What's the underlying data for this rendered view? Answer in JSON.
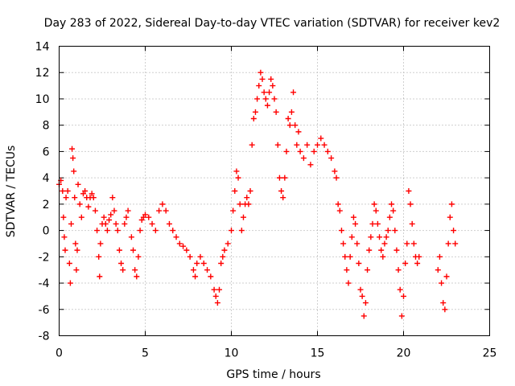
{
  "chart_data": {
    "type": "scatter",
    "title": "Day 283 of 2022, Sidereal Day-to-day VTEC variation (SDTVAR) for receiver kev2",
    "xlabel": "GPS time / hours",
    "ylabel": "SDTVAR / TECUs",
    "xlim": [
      0,
      25
    ],
    "ylim": [
      -8,
      14
    ],
    "xticks": [
      0,
      5,
      10,
      15,
      20,
      25
    ],
    "yticks": [
      -8,
      -6,
      -4,
      -2,
      0,
      2,
      4,
      6,
      8,
      10,
      12,
      14
    ],
    "grid": true,
    "marker": "+",
    "series": [
      {
        "name": "SDTVAR",
        "color": "#ff0000",
        "points": [
          [
            0.0,
            3.5
          ],
          [
            0.1,
            3.8
          ],
          [
            0.2,
            3.0
          ],
          [
            0.25,
            1.0
          ],
          [
            0.3,
            -0.5
          ],
          [
            0.35,
            -1.5
          ],
          [
            0.4,
            2.5
          ],
          [
            0.5,
            3.0
          ],
          [
            0.6,
            -2.5
          ],
          [
            0.65,
            -4.0
          ],
          [
            0.7,
            0.5
          ],
          [
            0.75,
            6.2
          ],
          [
            0.8,
            5.5
          ],
          [
            0.85,
            4.5
          ],
          [
            0.9,
            2.5
          ],
          [
            0.95,
            -1.0
          ],
          [
            1.0,
            -3.0
          ],
          [
            1.05,
            -1.5
          ],
          [
            1.1,
            3.5
          ],
          [
            1.2,
            2.0
          ],
          [
            1.3,
            1.0
          ],
          [
            1.4,
            2.8
          ],
          [
            1.5,
            3.0
          ],
          [
            1.6,
            2.5
          ],
          [
            1.7,
            1.8
          ],
          [
            1.8,
            2.5
          ],
          [
            1.9,
            2.8
          ],
          [
            2.0,
            2.5
          ],
          [
            2.1,
            1.5
          ],
          [
            2.2,
            0.0
          ],
          [
            2.3,
            -2.0
          ],
          [
            2.35,
            -3.5
          ],
          [
            2.4,
            -1.0
          ],
          [
            2.5,
            0.5
          ],
          [
            2.6,
            1.0
          ],
          [
            2.7,
            0.5
          ],
          [
            2.8,
            0.0
          ],
          [
            2.9,
            0.8
          ],
          [
            3.0,
            1.2
          ],
          [
            3.1,
            2.5
          ],
          [
            3.2,
            1.5
          ],
          [
            3.3,
            0.5
          ],
          [
            3.4,
            0.0
          ],
          [
            3.5,
            -1.5
          ],
          [
            3.6,
            -2.5
          ],
          [
            3.7,
            -3.0
          ],
          [
            3.8,
            0.5
          ],
          [
            3.9,
            1.0
          ],
          [
            4.0,
            1.5
          ],
          [
            4.2,
            -0.5
          ],
          [
            4.3,
            -1.5
          ],
          [
            4.4,
            -3.0
          ],
          [
            4.5,
            -3.5
          ],
          [
            4.6,
            -2.0
          ],
          [
            4.7,
            0.0
          ],
          [
            4.8,
            0.8
          ],
          [
            4.9,
            1.0
          ],
          [
            5.0,
            1.2
          ],
          [
            5.2,
            1.0
          ],
          [
            5.4,
            0.5
          ],
          [
            5.6,
            0.0
          ],
          [
            5.8,
            1.5
          ],
          [
            6.0,
            2.0
          ],
          [
            6.2,
            1.5
          ],
          [
            6.4,
            0.5
          ],
          [
            6.6,
            0.0
          ],
          [
            6.8,
            -0.5
          ],
          [
            7.0,
            -1.0
          ],
          [
            7.2,
            -1.2
          ],
          [
            7.4,
            -1.5
          ],
          [
            7.6,
            -2.0
          ],
          [
            7.8,
            -3.0
          ],
          [
            7.9,
            -3.5
          ],
          [
            8.0,
            -2.5
          ],
          [
            8.2,
            -2.0
          ],
          [
            8.4,
            -2.5
          ],
          [
            8.6,
            -3.0
          ],
          [
            8.8,
            -3.5
          ],
          [
            9.0,
            -4.5
          ],
          [
            9.1,
            -5.0
          ],
          [
            9.2,
            -5.5
          ],
          [
            9.3,
            -4.5
          ],
          [
            9.4,
            -2.5
          ],
          [
            9.5,
            -2.0
          ],
          [
            9.6,
            -1.5
          ],
          [
            9.8,
            -1.0
          ],
          [
            10.0,
            0.0
          ],
          [
            10.1,
            1.5
          ],
          [
            10.2,
            3.0
          ],
          [
            10.3,
            4.5
          ],
          [
            10.4,
            4.0
          ],
          [
            10.5,
            2.0
          ],
          [
            10.6,
            0.0
          ],
          [
            10.7,
            1.0
          ],
          [
            10.8,
            2.0
          ],
          [
            10.9,
            2.5
          ],
          [
            11.0,
            2.0
          ],
          [
            11.1,
            3.0
          ],
          [
            11.2,
            6.5
          ],
          [
            11.3,
            8.5
          ],
          [
            11.4,
            9.0
          ],
          [
            11.5,
            10.0
          ],
          [
            11.6,
            11.0
          ],
          [
            11.7,
            12.0
          ],
          [
            11.8,
            11.5
          ],
          [
            11.9,
            10.5
          ],
          [
            12.0,
            10.0
          ],
          [
            12.1,
            9.5
          ],
          [
            12.2,
            10.5
          ],
          [
            12.3,
            11.5
          ],
          [
            12.4,
            11.0
          ],
          [
            12.5,
            10.0
          ],
          [
            12.6,
            9.0
          ],
          [
            12.7,
            6.5
          ],
          [
            12.8,
            4.0
          ],
          [
            12.9,
            3.0
          ],
          [
            13.0,
            2.5
          ],
          [
            13.1,
            4.0
          ],
          [
            13.2,
            6.0
          ],
          [
            13.3,
            8.5
          ],
          [
            13.4,
            8.0
          ],
          [
            13.5,
            9.0
          ],
          [
            13.6,
            10.5
          ],
          [
            13.7,
            8.0
          ],
          [
            13.8,
            6.5
          ],
          [
            13.9,
            7.5
          ],
          [
            14.0,
            6.0
          ],
          [
            14.2,
            5.5
          ],
          [
            14.4,
            6.5
          ],
          [
            14.6,
            5.0
          ],
          [
            14.8,
            6.0
          ],
          [
            15.0,
            6.5
          ],
          [
            15.2,
            7.0
          ],
          [
            15.4,
            6.5
          ],
          [
            15.6,
            6.0
          ],
          [
            15.8,
            5.5
          ],
          [
            16.0,
            4.5
          ],
          [
            16.1,
            4.0
          ],
          [
            16.2,
            2.0
          ],
          [
            16.3,
            1.5
          ],
          [
            16.4,
            0.0
          ],
          [
            16.5,
            -1.0
          ],
          [
            16.6,
            -2.0
          ],
          [
            16.7,
            -3.0
          ],
          [
            16.8,
            -4.0
          ],
          [
            16.9,
            -2.0
          ],
          [
            17.0,
            -0.5
          ],
          [
            17.1,
            1.0
          ],
          [
            17.2,
            0.5
          ],
          [
            17.3,
            -1.0
          ],
          [
            17.4,
            -2.5
          ],
          [
            17.5,
            -4.5
          ],
          [
            17.6,
            -5.0
          ],
          [
            17.7,
            -6.5
          ],
          [
            17.8,
            -5.5
          ],
          [
            17.9,
            -3.0
          ],
          [
            18.0,
            -1.5
          ],
          [
            18.1,
            -0.5
          ],
          [
            18.2,
            0.5
          ],
          [
            18.3,
            2.0
          ],
          [
            18.4,
            1.5
          ],
          [
            18.5,
            0.5
          ],
          [
            18.6,
            -0.5
          ],
          [
            18.7,
            -1.5
          ],
          [
            18.8,
            -2.0
          ],
          [
            18.9,
            -1.0
          ],
          [
            19.0,
            -0.5
          ],
          [
            19.1,
            0.0
          ],
          [
            19.2,
            1.0
          ],
          [
            19.3,
            2.0
          ],
          [
            19.4,
            1.5
          ],
          [
            19.5,
            0.0
          ],
          [
            19.6,
            -1.5
          ],
          [
            19.7,
            -3.0
          ],
          [
            19.8,
            -4.5
          ],
          [
            19.9,
            -6.5
          ],
          [
            20.0,
            -5.0
          ],
          [
            20.1,
            -2.5
          ],
          [
            20.2,
            -1.0
          ],
          [
            20.3,
            3.0
          ],
          [
            20.4,
            2.0
          ],
          [
            20.5,
            0.5
          ],
          [
            20.6,
            -1.0
          ],
          [
            20.7,
            -2.0
          ],
          [
            20.8,
            -2.5
          ],
          [
            20.9,
            -2.0
          ],
          [
            22.0,
            -3.0
          ],
          [
            22.1,
            -2.0
          ],
          [
            22.2,
            -4.0
          ],
          [
            22.3,
            -5.5
          ],
          [
            22.4,
            -6.0
          ],
          [
            22.5,
            -3.5
          ],
          [
            22.6,
            -1.0
          ],
          [
            22.7,
            1.0
          ],
          [
            22.8,
            2.0
          ],
          [
            22.9,
            0.0
          ],
          [
            23.0,
            -1.0
          ]
        ]
      }
    ]
  }
}
